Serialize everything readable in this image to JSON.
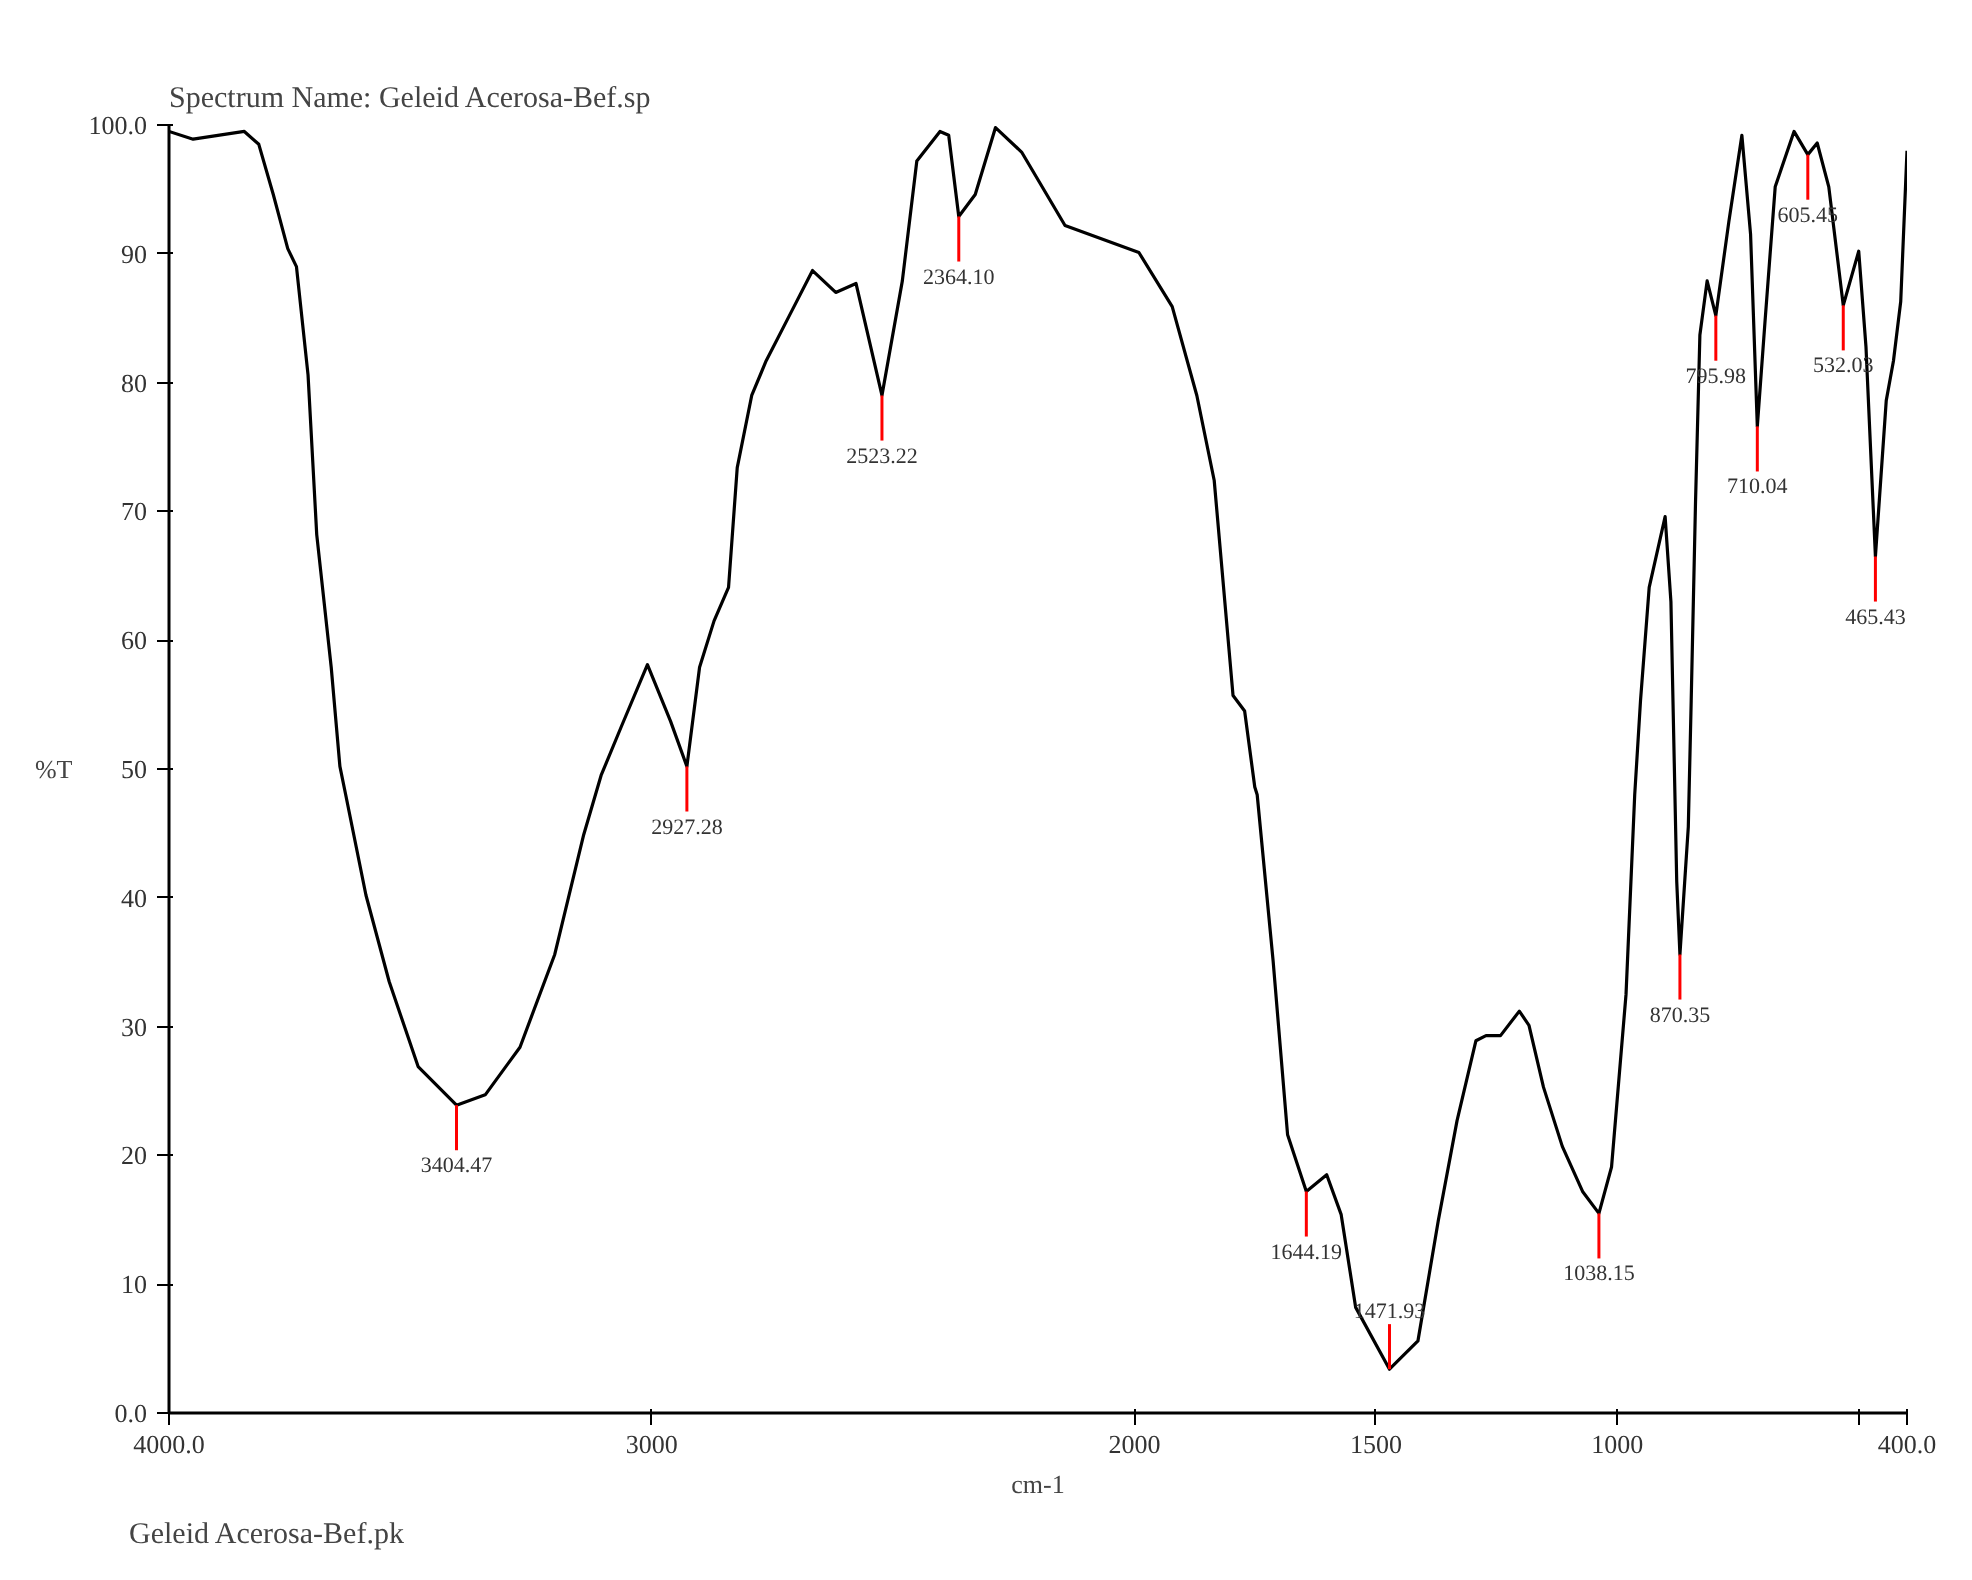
{
  "chart_data": {
    "type": "line",
    "title": "Spectrum Name: Geleid Acerosa-Bef.sp",
    "xlabel": "cm-1",
    "ylabel": "%T",
    "xlim": [
      4000,
      400
    ],
    "ylim": [
      0,
      100
    ],
    "xticks": [
      {
        "value": 4000,
        "label": "4000.0"
      },
      3000,
      2000,
      1500,
      1000,
      {
        "value": 500,
        "label": null
      },
      {
        "value": 400,
        "label": "400.0"
      }
    ],
    "yticks": [
      {
        "value": 0,
        "label": "0.0"
      },
      10,
      20,
      30,
      40,
      50,
      60,
      70,
      80,
      90,
      {
        "value": 100,
        "label": "100.0"
      }
    ],
    "grid": false,
    "marker": "none",
    "line_style": "solid",
    "series": [
      {
        "color": "#000000",
        "x": [
          4000,
          3950,
          3844,
          3814,
          3784,
          3754,
          3736,
          3712,
          3694,
          3664,
          3646,
          3634,
          3592,
          3544,
          3484,
          3404.47,
          3345,
          3273,
          3201,
          3141,
          3105,
          3063,
          3009,
          2961,
          2927.28,
          2901,
          2871,
          2841,
          2823,
          2793,
          2763,
          2715,
          2667,
          2619,
          2577,
          2523.22,
          2481,
          2451,
          2403,
          2385,
          2364.1,
          2330,
          2288,
          2234,
          2144,
          1991,
          1922,
          1871,
          1835,
          1796,
          1772,
          1751,
          1746,
          1713,
          1683,
          1644.19,
          1602,
          1572,
          1542,
          1471.93,
          1413,
          1371,
          1332,
          1293,
          1272,
          1242,
          1203,
          1183,
          1153,
          1114,
          1072,
          1038.15,
          1012,
          982,
          964,
          952,
          934,
          901,
          889,
          877,
          870.35,
          853,
          847,
          838,
          829,
          814,
          795.98,
          769,
          742,
          724,
          710.04,
          694,
          673,
          634,
          605.45,
          586,
          562,
          532.03,
          500,
          485,
          465.43,
          443,
          428,
          413,
          400
        ],
        "values": [
          99.5,
          98.9,
          99.5,
          98.5,
          94.6,
          90.4,
          89,
          80.6,
          68.2,
          57.9,
          50.2,
          48,
          40.2,
          33.5,
          26.9,
          23.9,
          24.7,
          28.4,
          35.6,
          44.9,
          49.5,
          53.3,
          58.1,
          53.7,
          50.2,
          57.9,
          61.5,
          64.1,
          73.4,
          79,
          81.7,
          85.2,
          88.7,
          87,
          87.7,
          79,
          87.9,
          97.2,
          99.5,
          99.2,
          92.9,
          94.6,
          99.8,
          97.9,
          92.2,
          90.1,
          85.9,
          79,
          72.4,
          55.7,
          54.5,
          48.6,
          48,
          35.1,
          21.6,
          17.2,
          18.5,
          15.4,
          8.2,
          3.4,
          5.6,
          14.9,
          22.7,
          28.9,
          29.3,
          29.3,
          31.2,
          30.1,
          25.3,
          20.7,
          17.2,
          15.5,
          19.1,
          32.5,
          48,
          55.3,
          64.1,
          69.6,
          63,
          41.3,
          35.6,
          45.5,
          55.3,
          70.8,
          83.7,
          87.9,
          85.2,
          92.5,
          99.2,
          91.5,
          76.6,
          84.8,
          95.2,
          99.5,
          97.7,
          98.6,
          95.2,
          86,
          90.2,
          82.8,
          66.5,
          78.6,
          81.7,
          86.3,
          98
        ]
      }
    ],
    "annotations": [
      {
        "text": "3404.47",
        "x": 3404.47,
        "y": 23.9
      },
      {
        "text": "2927.28",
        "x": 2927.28,
        "y": 50.2
      },
      {
        "text": "2523.22",
        "x": 2523.22,
        "y": 79
      },
      {
        "text": "2364.10",
        "x": 2364.1,
        "y": 92.9
      },
      {
        "text": "1644.19",
        "x": 1644.19,
        "y": 17.2
      },
      {
        "text": "1471.93",
        "x": 1471.93,
        "y": 3.4
      },
      {
        "text": "1038.15",
        "x": 1038.15,
        "y": 15.5
      },
      {
        "text": "870.35",
        "x": 870.35,
        "y": 35.6
      },
      {
        "text": "795.98",
        "x": 795.98,
        "y": 85.2
      },
      {
        "text": "710.04",
        "x": 710.04,
        "y": 76.6
      },
      {
        "text": "605.45",
        "x": 605.45,
        "y": 97.7
      },
      {
        "text": "532.03",
        "x": 532.03,
        "y": 86
      },
      {
        "text": "465.43",
        "x": 465.43,
        "y": 66.5
      },
      "Geleid Acerosa-Bef.pk"
    ]
  }
}
